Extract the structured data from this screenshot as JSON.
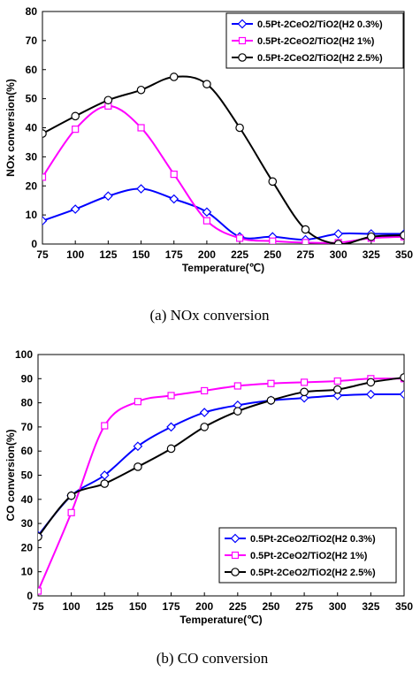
{
  "chart_data": [
    {
      "type": "line",
      "caption": "(a)  NOx  conversion",
      "xlabel": "Temperature(℃)",
      "ylabel": "NOx conversion(%)",
      "x": [
        75,
        100,
        125,
        150,
        175,
        200,
        225,
        250,
        275,
        300,
        325,
        350
      ],
      "xlim": [
        75,
        350
      ],
      "ylim": [
        0,
        80
      ],
      "yticks": [
        0,
        10,
        20,
        30,
        40,
        50,
        60,
        70,
        80
      ],
      "legend_position": "top-right",
      "series": [
        {
          "name": "0.5Pt-2CeO2/TiO2(H2 0.3%)",
          "color": "#0000ff",
          "marker": "diamond",
          "values": [
            8,
            12,
            16.5,
            19,
            15.5,
            11,
            2.5,
            2.5,
            1.5,
            3.5,
            3.5,
            3.5
          ]
        },
        {
          "name": "0.5Pt-2CeO2/TiO2(H2 1%)",
          "color": "#ff00ff",
          "marker": "square",
          "values": [
            23,
            39.5,
            47.5,
            40,
            24,
            8,
            2,
            1,
            0.5,
            0.5,
            2,
            2.5
          ]
        },
        {
          "name": "0.5Pt-2CeO2/TiO2(H2 2.5%)",
          "color": "#000000",
          "marker": "circle",
          "values": [
            38,
            44,
            49.5,
            53,
            57.5,
            55,
            40,
            21.5,
            5,
            0,
            2.5,
            3
          ]
        }
      ]
    },
    {
      "type": "line",
      "caption": "(b)  CO  conversion",
      "xlabel": "Temperature(℃)",
      "ylabel": "CO conversion(%)",
      "x": [
        75,
        100,
        125,
        150,
        175,
        200,
        225,
        250,
        275,
        300,
        325,
        350
      ],
      "xlim": [
        75,
        350
      ],
      "ylim": [
        0,
        100
      ],
      "yticks": [
        0,
        10,
        20,
        30,
        40,
        50,
        60,
        70,
        80,
        90,
        100
      ],
      "legend_position": "bottom-right",
      "series": [
        {
          "name": "0.5Pt-2CeO2/TiO2(H2 0.3%)",
          "color": "#0000ff",
          "marker": "diamond",
          "values": [
            25,
            41.5,
            50,
            62,
            70,
            76,
            79,
            81,
            82,
            83,
            83.5,
            83.5
          ]
        },
        {
          "name": "0.5Pt-2CeO2/TiO2(H2 1%)",
          "color": "#ff00ff",
          "marker": "square",
          "values": [
            2,
            34.5,
            70.5,
            80.5,
            83,
            85,
            87,
            88,
            88.5,
            89,
            90,
            90
          ]
        },
        {
          "name": "0.5Pt-2CeO2/TiO2(H2 2.5%)",
          "color": "#000000",
          "marker": "circle",
          "values": [
            24.5,
            41.5,
            46.5,
            53.5,
            61,
            70,
            76.5,
            81,
            84.5,
            85.5,
            88.5,
            90.5
          ]
        }
      ]
    }
  ]
}
